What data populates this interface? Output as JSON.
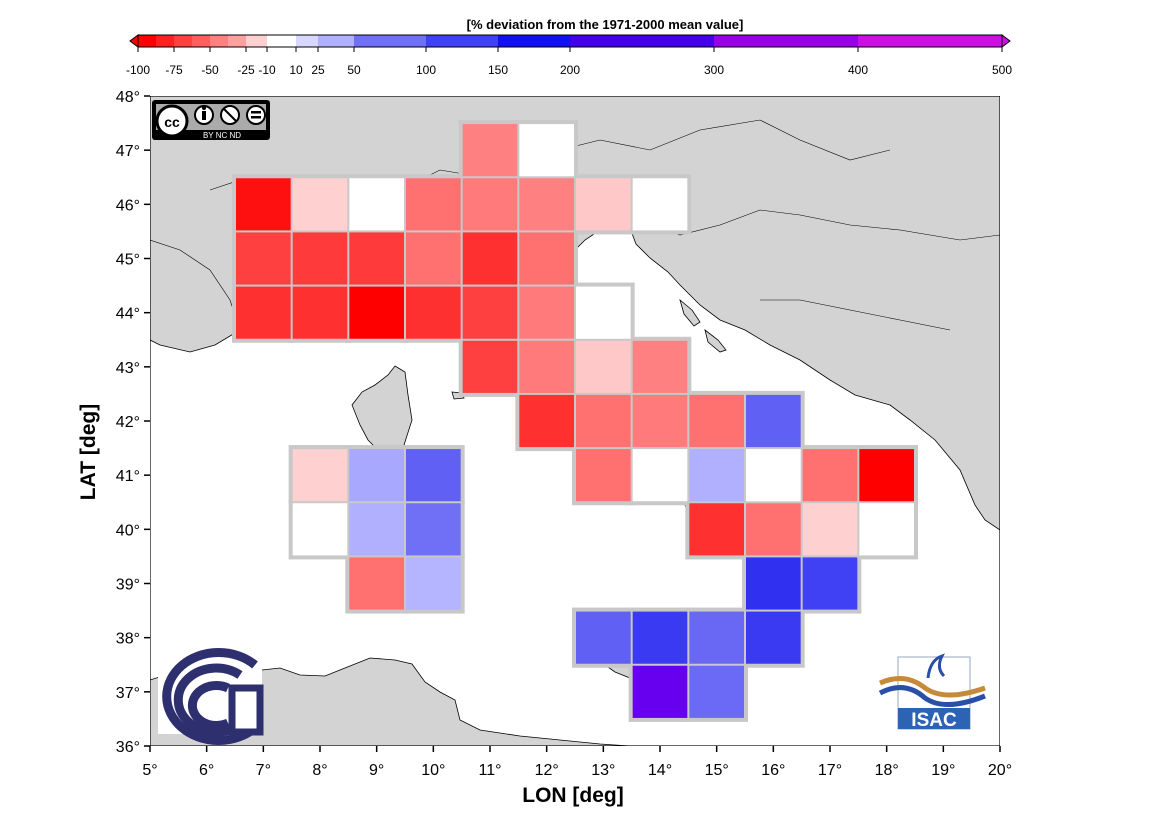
{
  "colorbar": {
    "title": "[% deviation from the 1971-2000 mean value]",
    "ticks": [
      "-100",
      "-75",
      "-50",
      "-25",
      "-10",
      "10",
      "25",
      "50",
      "100",
      "150",
      "200",
      "300",
      "400",
      "500"
    ],
    "tick_values": [
      -100,
      -75,
      -50,
      -25,
      -10,
      10,
      25,
      50,
      100,
      150,
      200,
      300,
      400,
      500
    ],
    "bins": [
      {
        "from": -100,
        "to": -87.5,
        "color": "#ff0000"
      },
      {
        "from": -87.5,
        "to": -75,
        "color": "#ff2020"
      },
      {
        "from": -75,
        "to": -62.5,
        "color": "#ff4040"
      },
      {
        "from": -62.5,
        "to": -50,
        "color": "#ff5e5e"
      },
      {
        "from": -50,
        "to": -37.5,
        "color": "#ff8080"
      },
      {
        "from": -37.5,
        "to": -25,
        "color": "#ffa0a0"
      },
      {
        "from": -25,
        "to": -10,
        "color": "#ffd0d0"
      },
      {
        "from": -10,
        "to": 10,
        "color": "#ffffff"
      },
      {
        "from": 10,
        "to": 25,
        "color": "#d8d8ff"
      },
      {
        "from": 25,
        "to": 50,
        "color": "#b0b0ff"
      },
      {
        "from": 50,
        "to": 100,
        "color": "#7070f6"
      },
      {
        "from": 100,
        "to": 150,
        "color": "#4040f4"
      },
      {
        "from": 150,
        "to": 200,
        "color": "#1010f0"
      },
      {
        "from": 200,
        "to": 300,
        "color": "#4400e8"
      },
      {
        "from": 300,
        "to": 400,
        "color": "#9a00e6"
      },
      {
        "from": 400,
        "to": 500,
        "color": "#cc10e2"
      }
    ]
  },
  "axes": {
    "xlabel": "LON [deg]",
    "ylabel": "LAT [deg]",
    "xlim": [
      5,
      20
    ],
    "ylim": [
      36,
      48
    ],
    "xticks": [
      5,
      6,
      7,
      8,
      9,
      10,
      11,
      12,
      13,
      14,
      15,
      16,
      17,
      18,
      19,
      20
    ],
    "yticks": [
      36,
      37,
      38,
      39,
      40,
      41,
      42,
      43,
      44,
      45,
      46,
      47,
      48
    ],
    "xtick_labels": [
      "5°",
      "6°",
      "7°",
      "8°",
      "9°",
      "10°",
      "11°",
      "12°",
      "13°",
      "14°",
      "15°",
      "16°",
      "17°",
      "18°",
      "19°",
      "20°"
    ],
    "ytick_labels": [
      "36°",
      "37°",
      "38°",
      "39°",
      "40°",
      "41°",
      "42°",
      "43°",
      "44°",
      "45°",
      "46°",
      "47°",
      "48°"
    ]
  },
  "colors": {
    "land": "#d3d3d3",
    "sea": "#ffffff",
    "coast": "#000000",
    "grid_gap": "#c8c8c8",
    "logo_blue": "#2e2f6e"
  },
  "logos": {
    "license": {
      "icon": "cc-by-nc-nd-icon",
      "text": "BY  NC  ND"
    },
    "institute": {
      "icon": "cnr-logo-icon"
    },
    "isac": {
      "icon": "isac-logo-icon",
      "text": "ISAC"
    }
  },
  "chart_data": {
    "type": "heatmap",
    "value_description": "cell colour class (% deviation)",
    "cells": [
      {
        "lon": 11,
        "lat": 47,
        "color": "#ff8080"
      },
      {
        "lon": 12,
        "lat": 47,
        "color": "#ffffff"
      },
      {
        "lon": 7,
        "lat": 46,
        "color": "#ff1010"
      },
      {
        "lon": 8,
        "lat": 46,
        "color": "#ffd0d0"
      },
      {
        "lon": 9,
        "lat": 46,
        "color": "#ffffff"
      },
      {
        "lon": 10,
        "lat": 46,
        "color": "#ff7070"
      },
      {
        "lon": 11,
        "lat": 46,
        "color": "#ff7a7a"
      },
      {
        "lon": 12,
        "lat": 46,
        "color": "#ff8080"
      },
      {
        "lon": 13,
        "lat": 46,
        "color": "#ffc8c8"
      },
      {
        "lon": 14,
        "lat": 46,
        "color": "#ffffff"
      },
      {
        "lon": 7,
        "lat": 45,
        "color": "#ff4040"
      },
      {
        "lon": 8,
        "lat": 45,
        "color": "#ff3a3a"
      },
      {
        "lon": 9,
        "lat": 45,
        "color": "#ff3a3a"
      },
      {
        "lon": 10,
        "lat": 45,
        "color": "#ff7070"
      },
      {
        "lon": 11,
        "lat": 45,
        "color": "#ff3030"
      },
      {
        "lon": 12,
        "lat": 45,
        "color": "#ff7070"
      },
      {
        "lon": 7,
        "lat": 44,
        "color": "#ff3030"
      },
      {
        "lon": 8,
        "lat": 44,
        "color": "#ff3030"
      },
      {
        "lon": 9,
        "lat": 44,
        "color": "#ff0000"
      },
      {
        "lon": 10,
        "lat": 44,
        "color": "#ff3030"
      },
      {
        "lon": 11,
        "lat": 44,
        "color": "#ff4040"
      },
      {
        "lon": 12,
        "lat": 44,
        "color": "#ff7a7a"
      },
      {
        "lon": 13,
        "lat": 44,
        "color": "#ffffff"
      },
      {
        "lon": 11,
        "lat": 43,
        "color": "#ff4040"
      },
      {
        "lon": 12,
        "lat": 43,
        "color": "#ff7a7a"
      },
      {
        "lon": 13,
        "lat": 43,
        "color": "#ffc8c8"
      },
      {
        "lon": 14,
        "lat": 43,
        "color": "#ff8080"
      },
      {
        "lon": 12,
        "lat": 42,
        "color": "#ff3030"
      },
      {
        "lon": 13,
        "lat": 42,
        "color": "#ff7070"
      },
      {
        "lon": 14,
        "lat": 42,
        "color": "#ff7a7a"
      },
      {
        "lon": 15,
        "lat": 42,
        "color": "#ff7070"
      },
      {
        "lon": 16,
        "lat": 42,
        "color": "#6060f4"
      },
      {
        "lon": 8,
        "lat": 41,
        "color": "#ffd0d0"
      },
      {
        "lon": 9,
        "lat": 41,
        "color": "#a8a8ff"
      },
      {
        "lon": 10,
        "lat": 41,
        "color": "#6060f4"
      },
      {
        "lon": 13,
        "lat": 41,
        "color": "#ff7070"
      },
      {
        "lon": 14,
        "lat": 41,
        "color": "#ffffff"
      },
      {
        "lon": 15,
        "lat": 41,
        "color": "#b0b0ff"
      },
      {
        "lon": 16,
        "lat": 41,
        "color": "#ffffff"
      },
      {
        "lon": 17,
        "lat": 41,
        "color": "#ff7070"
      },
      {
        "lon": 18,
        "lat": 41,
        "color": "#ff0000"
      },
      {
        "lon": 8,
        "lat": 40,
        "color": "#ffffff"
      },
      {
        "lon": 9,
        "lat": 40,
        "color": "#b0b0ff"
      },
      {
        "lon": 10,
        "lat": 40,
        "color": "#7070f6"
      },
      {
        "lon": 15,
        "lat": 40,
        "color": "#ff3030"
      },
      {
        "lon": 16,
        "lat": 40,
        "color": "#ff7070"
      },
      {
        "lon": 17,
        "lat": 40,
        "color": "#ffd0d0"
      },
      {
        "lon": 18,
        "lat": 40,
        "color": "#ffffff"
      },
      {
        "lon": 9,
        "lat": 39,
        "color": "#ff7070"
      },
      {
        "lon": 10,
        "lat": 39,
        "color": "#b4b4ff"
      },
      {
        "lon": 16,
        "lat": 39,
        "color": "#3030f0"
      },
      {
        "lon": 17,
        "lat": 39,
        "color": "#4040f4"
      },
      {
        "lon": 13,
        "lat": 38,
        "color": "#6060f4"
      },
      {
        "lon": 14,
        "lat": 38,
        "color": "#3a3af2"
      },
      {
        "lon": 15,
        "lat": 38,
        "color": "#6868f4"
      },
      {
        "lon": 16,
        "lat": 38,
        "color": "#3a3af2"
      },
      {
        "lon": 14,
        "lat": 37,
        "color": "#6600ee"
      },
      {
        "lon": 15,
        "lat": 37,
        "color": "#6a6af6"
      }
    ]
  }
}
